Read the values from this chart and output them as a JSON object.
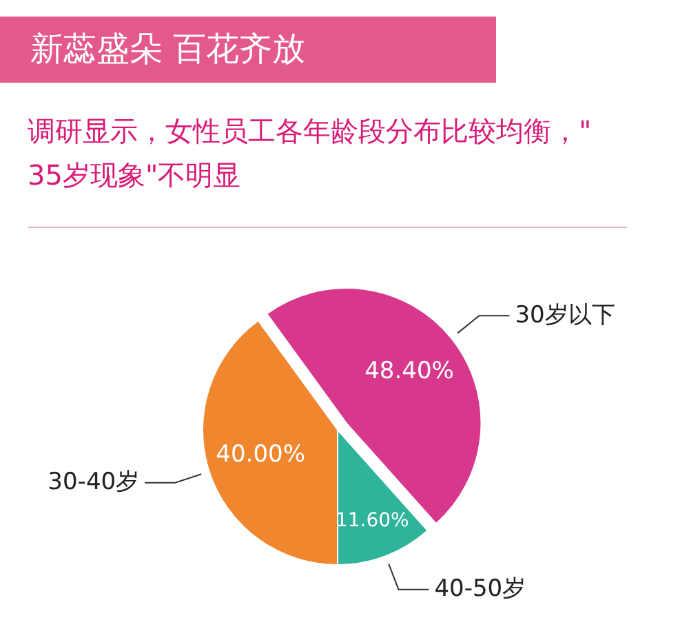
{
  "chart_data": {
    "type": "pie",
    "title": "新蕊盛朵 百花齐放",
    "subtitle": "调研显示，女性员工各年龄段分布比较均衡，\"35岁现象\"不明显",
    "categories": [
      "30岁以下",
      "40-50岁",
      "30-40岁"
    ],
    "values": [
      48.4,
      11.6,
      40.0
    ],
    "colors": [
      "#d8388c",
      "#2fb39b",
      "#f0862e"
    ],
    "value_labels": [
      "48.40%",
      "11.60%",
      "40.00%"
    ]
  }
}
